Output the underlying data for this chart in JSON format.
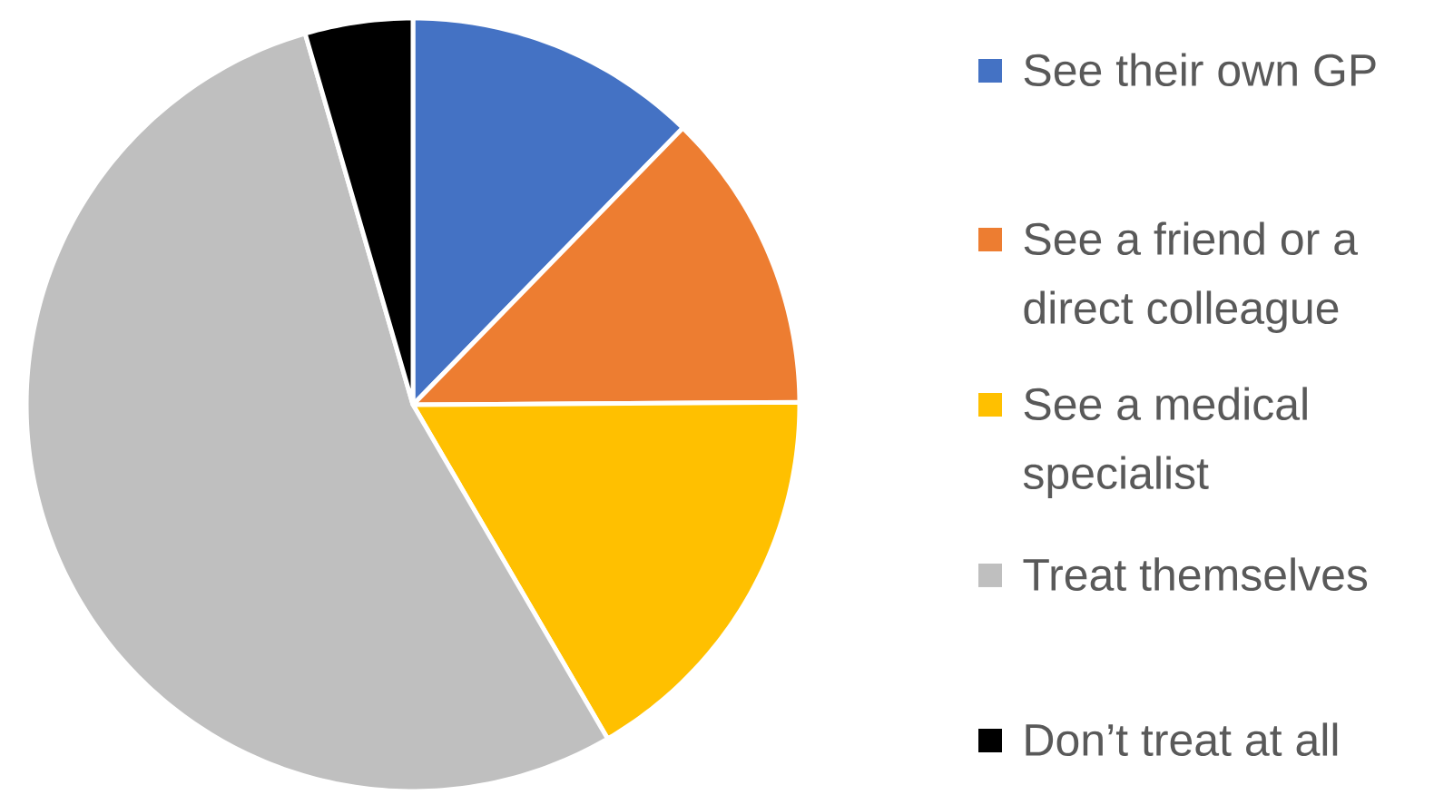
{
  "chart_data": {
    "type": "pie",
    "categories": [
      "See their own GP",
      "See a friend or a direct colleague",
      "See a medical specialist",
      "Treat themselves",
      "Don’t treat at all"
    ],
    "values": [
      12.3,
      12.6,
      16.7,
      53.9,
      4.5
    ],
    "colors": [
      "#4472c4",
      "#ed7d31",
      "#ffc000",
      "#bfbfbf",
      "#000000"
    ],
    "legend": "right"
  }
}
